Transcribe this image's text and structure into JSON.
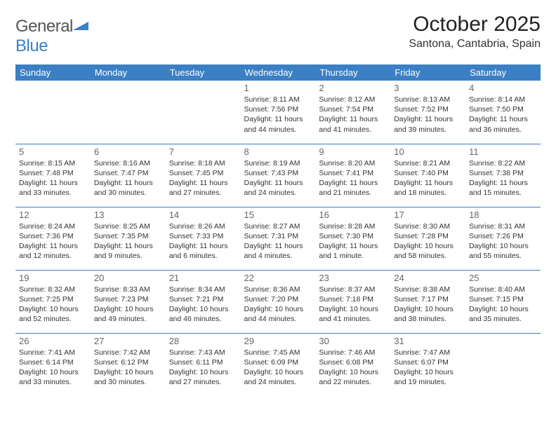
{
  "logo": {
    "word1": "General",
    "word2": "Blue"
  },
  "title": "October 2025",
  "location": "Santona, Cantabria, Spain",
  "colors": {
    "header_bg": "#3b7fc4",
    "header_text": "#ffffff",
    "border": "#3b7fc4",
    "daynum": "#666666",
    "body_text": "#333333",
    "background": "#ffffff"
  },
  "weekdays": [
    "Sunday",
    "Monday",
    "Tuesday",
    "Wednesday",
    "Thursday",
    "Friday",
    "Saturday"
  ],
  "weeks": [
    [
      null,
      null,
      null,
      {
        "n": "1",
        "rise": "8:11 AM",
        "set": "7:56 PM",
        "dl": "11 hours and 44 minutes."
      },
      {
        "n": "2",
        "rise": "8:12 AM",
        "set": "7:54 PM",
        "dl": "11 hours and 41 minutes."
      },
      {
        "n": "3",
        "rise": "8:13 AM",
        "set": "7:52 PM",
        "dl": "11 hours and 39 minutes."
      },
      {
        "n": "4",
        "rise": "8:14 AM",
        "set": "7:50 PM",
        "dl": "11 hours and 36 minutes."
      }
    ],
    [
      {
        "n": "5",
        "rise": "8:15 AM",
        "set": "7:48 PM",
        "dl": "11 hours and 33 minutes."
      },
      {
        "n": "6",
        "rise": "8:16 AM",
        "set": "7:47 PM",
        "dl": "11 hours and 30 minutes."
      },
      {
        "n": "7",
        "rise": "8:18 AM",
        "set": "7:45 PM",
        "dl": "11 hours and 27 minutes."
      },
      {
        "n": "8",
        "rise": "8:19 AM",
        "set": "7:43 PM",
        "dl": "11 hours and 24 minutes."
      },
      {
        "n": "9",
        "rise": "8:20 AM",
        "set": "7:41 PM",
        "dl": "11 hours and 21 minutes."
      },
      {
        "n": "10",
        "rise": "8:21 AM",
        "set": "7:40 PM",
        "dl": "11 hours and 18 minutes."
      },
      {
        "n": "11",
        "rise": "8:22 AM",
        "set": "7:38 PM",
        "dl": "11 hours and 15 minutes."
      }
    ],
    [
      {
        "n": "12",
        "rise": "8:24 AM",
        "set": "7:36 PM",
        "dl": "11 hours and 12 minutes."
      },
      {
        "n": "13",
        "rise": "8:25 AM",
        "set": "7:35 PM",
        "dl": "11 hours and 9 minutes."
      },
      {
        "n": "14",
        "rise": "8:26 AM",
        "set": "7:33 PM",
        "dl": "11 hours and 6 minutes."
      },
      {
        "n": "15",
        "rise": "8:27 AM",
        "set": "7:31 PM",
        "dl": "11 hours and 4 minutes."
      },
      {
        "n": "16",
        "rise": "8:28 AM",
        "set": "7:30 PM",
        "dl": "11 hours and 1 minute."
      },
      {
        "n": "17",
        "rise": "8:30 AM",
        "set": "7:28 PM",
        "dl": "10 hours and 58 minutes."
      },
      {
        "n": "18",
        "rise": "8:31 AM",
        "set": "7:26 PM",
        "dl": "10 hours and 55 minutes."
      }
    ],
    [
      {
        "n": "19",
        "rise": "8:32 AM",
        "set": "7:25 PM",
        "dl": "10 hours and 52 minutes."
      },
      {
        "n": "20",
        "rise": "8:33 AM",
        "set": "7:23 PM",
        "dl": "10 hours and 49 minutes."
      },
      {
        "n": "21",
        "rise": "8:34 AM",
        "set": "7:21 PM",
        "dl": "10 hours and 46 minutes."
      },
      {
        "n": "22",
        "rise": "8:36 AM",
        "set": "7:20 PM",
        "dl": "10 hours and 44 minutes."
      },
      {
        "n": "23",
        "rise": "8:37 AM",
        "set": "7:18 PM",
        "dl": "10 hours and 41 minutes."
      },
      {
        "n": "24",
        "rise": "8:38 AM",
        "set": "7:17 PM",
        "dl": "10 hours and 38 minutes."
      },
      {
        "n": "25",
        "rise": "8:40 AM",
        "set": "7:15 PM",
        "dl": "10 hours and 35 minutes."
      }
    ],
    [
      {
        "n": "26",
        "rise": "7:41 AM",
        "set": "6:14 PM",
        "dl": "10 hours and 33 minutes."
      },
      {
        "n": "27",
        "rise": "7:42 AM",
        "set": "6:12 PM",
        "dl": "10 hours and 30 minutes."
      },
      {
        "n": "28",
        "rise": "7:43 AM",
        "set": "6:11 PM",
        "dl": "10 hours and 27 minutes."
      },
      {
        "n": "29",
        "rise": "7:45 AM",
        "set": "6:09 PM",
        "dl": "10 hours and 24 minutes."
      },
      {
        "n": "30",
        "rise": "7:46 AM",
        "set": "6:08 PM",
        "dl": "10 hours and 22 minutes."
      },
      {
        "n": "31",
        "rise": "7:47 AM",
        "set": "6:07 PM",
        "dl": "10 hours and 19 minutes."
      },
      null
    ]
  ]
}
